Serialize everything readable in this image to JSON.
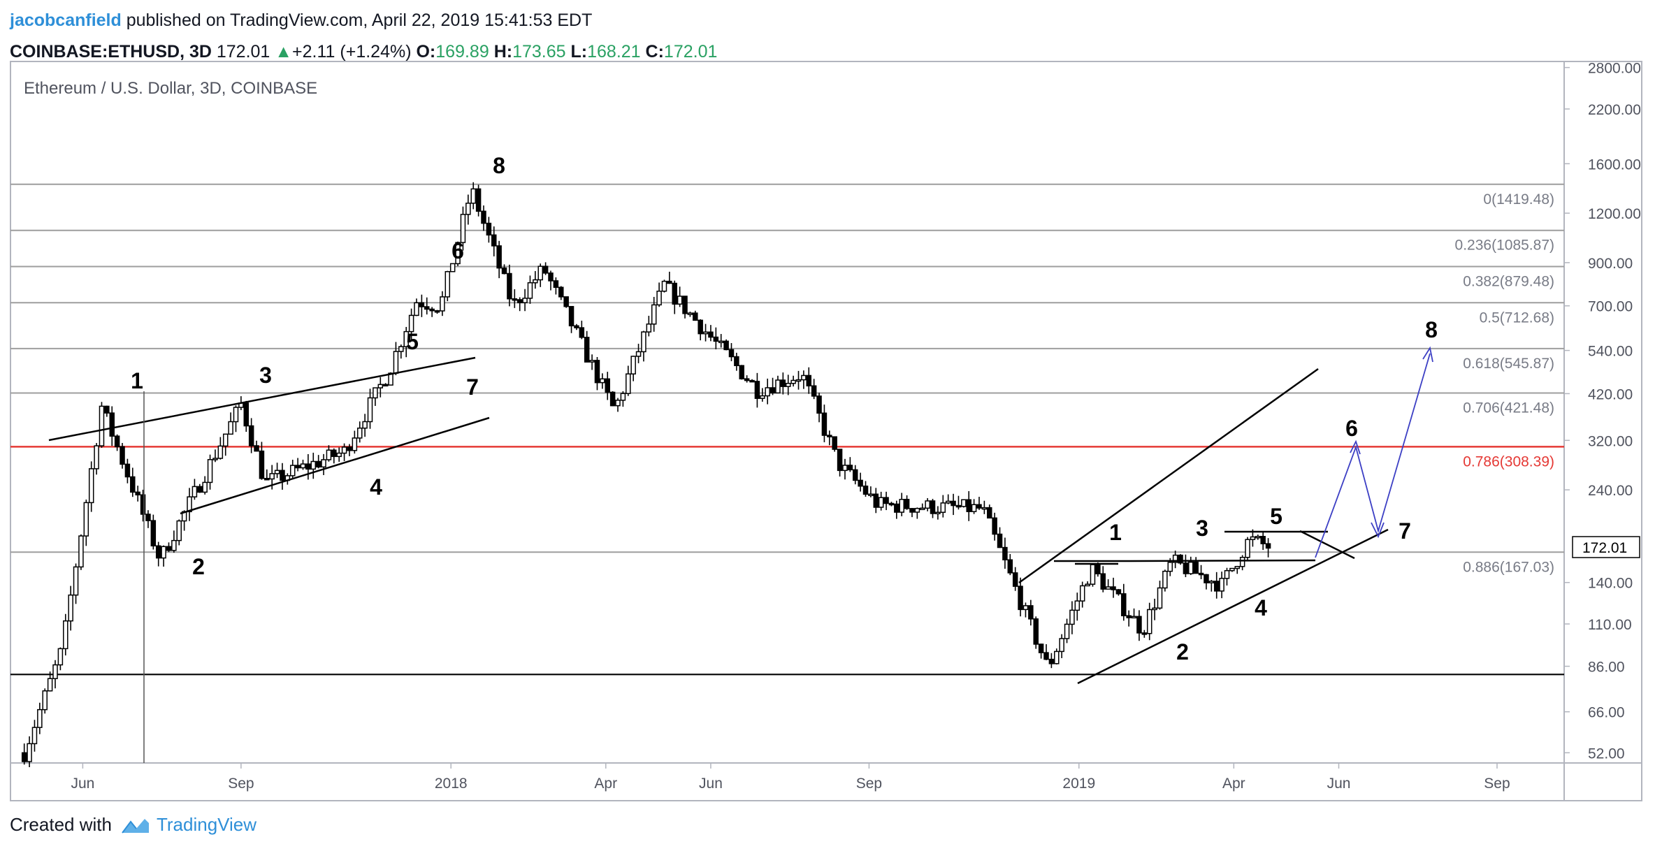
{
  "header": {
    "author": "jacobcanfield",
    "published": "published on TradingView.com, April 22, 2019 15:41:53 EDT",
    "symbol": "COINBASE:ETHUSD, 3D",
    "last": "172.01",
    "change_arrow": "▲",
    "change": "+2.11 (+1.24%)",
    "o_label": "O:",
    "o": "169.89",
    "h_label": "H:",
    "h": "173.65",
    "l_label": "L:",
    "l": "168.21",
    "c_label": "C:",
    "c": "172.01"
  },
  "footer": {
    "created_with": "Created with",
    "brand": "TradingView"
  },
  "colors": {
    "candle": "#000000",
    "grid": "#9e9e9e",
    "red_level": "#e53935",
    "projection": "#3c3fc4",
    "text": "#131722"
  },
  "chart_data": {
    "type": "candlestick",
    "title": "Ethereum / U.S. Dollar, 3D, COINBASE",
    "y_scale": "log",
    "ylim": [
      49,
      2900
    ],
    "y_ticks": [
      {
        "v": 2800,
        "t": "2800.00"
      },
      {
        "v": 2200,
        "t": "2200.00"
      },
      {
        "v": 1600,
        "t": "1600.00"
      },
      {
        "v": 1200,
        "t": "1200.00"
      },
      {
        "v": 900,
        "t": "900.00"
      },
      {
        "v": 700,
        "t": "700.00"
      },
      {
        "v": 540,
        "t": "540.00"
      },
      {
        "v": 420,
        "t": "420.00"
      },
      {
        "v": 320,
        "t": "320.00"
      },
      {
        "v": 240,
        "t": "240.00"
      },
      {
        "v": 140,
        "t": "140.00"
      },
      {
        "v": 110,
        "t": "110.00"
      },
      {
        "v": 86,
        "t": "86.00"
      },
      {
        "v": 66,
        "t": "66.00"
      },
      {
        "v": 52,
        "t": "52.00"
      }
    ],
    "last_price": {
      "v": 172.01,
      "t": "172.01"
    },
    "x_ticks": [
      "Jun",
      "Sep",
      "2018",
      "Apr",
      "Jun",
      "Sep",
      "2019",
      "Apr",
      "Jun",
      "Sep"
    ],
    "fib_levels": [
      {
        "v": 1419.48,
        "t": "0(1419.48)"
      },
      {
        "v": 1085.87,
        "t": "0.236(1085.87)"
      },
      {
        "v": 879.48,
        "t": "0.382(879.48)"
      },
      {
        "v": 712.68,
        "t": "0.5(712.68)"
      },
      {
        "v": 545.87,
        "t": "0.618(545.87)"
      },
      {
        "v": 421.48,
        "t": "0.706(421.48)"
      },
      {
        "v": 308.39,
        "t": "0.786(308.39)",
        "highlight": true
      },
      {
        "v": 167.03,
        "t": "0.886(167.03)"
      }
    ],
    "support_level": 82,
    "wave_labels_2017": [
      "1",
      "2",
      "3",
      "4",
      "5",
      "6",
      "7",
      "8"
    ],
    "wave_labels_2019": [
      "1",
      "2",
      "3",
      "4",
      "5",
      "6",
      "7",
      "8"
    ],
    "swing_points_close": [
      {
        "date": "2017-04-28",
        "close": 52
      },
      {
        "date": "2017-05-20",
        "close": 95
      },
      {
        "date": "2017-06-12",
        "close": 390
      },
      {
        "date": "2017-07-16",
        "close": 160
      },
      {
        "date": "2017-09-01",
        "close": 395
      },
      {
        "date": "2017-09-15",
        "close": 250
      },
      {
        "date": "2017-10-31",
        "close": 300
      },
      {
        "date": "2017-11-26",
        "close": 480
      },
      {
        "date": "2017-12-12",
        "close": 720
      },
      {
        "date": "2017-12-26",
        "close": 700
      },
      {
        "date": "2018-01-13",
        "close": 1380
      },
      {
        "date": "2018-02-06",
        "close": 700
      },
      {
        "date": "2018-02-24",
        "close": 870
      },
      {
        "date": "2018-04-06",
        "close": 380
      },
      {
        "date": "2018-05-05",
        "close": 790
      },
      {
        "date": "2018-06-28",
        "close": 430
      },
      {
        "date": "2018-07-24",
        "close": 470
      },
      {
        "date": "2018-08-14",
        "close": 280
      },
      {
        "date": "2018-09-06",
        "close": 220
      },
      {
        "date": "2018-11-06",
        "close": 215
      },
      {
        "date": "2018-12-14",
        "close": 85
      },
      {
        "date": "2019-01-08",
        "close": 152
      },
      {
        "date": "2019-02-07",
        "close": 106
      },
      {
        "date": "2019-02-24",
        "close": 158
      },
      {
        "date": "2019-03-25",
        "close": 138
      },
      {
        "date": "2019-04-10",
        "close": 180
      },
      {
        "date": "2019-04-22",
        "close": 172
      }
    ]
  }
}
